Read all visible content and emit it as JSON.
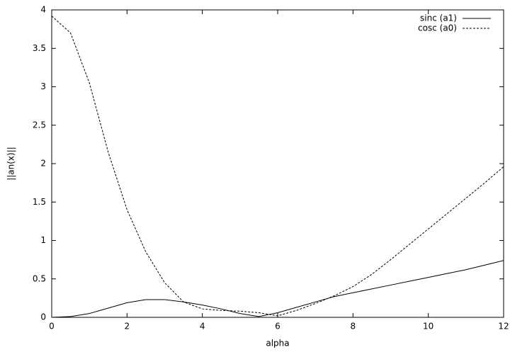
{
  "chart_data": {
    "type": "line",
    "xlabel": "alpha",
    "ylabel": "||an(x)||",
    "x": [
      0,
      0.5,
      1,
      1.5,
      2,
      2.5,
      3,
      3.5,
      4,
      4.5,
      5,
      5.5,
      6,
      6.5,
      7,
      7.5,
      8,
      8.5,
      9,
      9.5,
      10,
      10.5,
      11,
      11.5,
      12
    ],
    "series": [
      {
        "name": "sinc (a1)",
        "color": "#000000",
        "dashed": false,
        "values": [
          0,
          0.01,
          0.05,
          0.12,
          0.19,
          0.23,
          0.23,
          0.2,
          0.16,
          0.11,
          0.05,
          0.01,
          0.06,
          0.13,
          0.2,
          0.27,
          0.32,
          0.37,
          0.42,
          0.47,
          0.52,
          0.57,
          0.62,
          0.68,
          0.74
        ]
      },
      {
        "name": "cosc (a0)",
        "color": "#000000",
        "dashed": true,
        "values": [
          3.92,
          3.7,
          3.05,
          2.15,
          1.4,
          0.85,
          0.45,
          0.2,
          0.11,
          0.09,
          0.08,
          0.06,
          0.02,
          0.09,
          0.18,
          0.28,
          0.4,
          0.56,
          0.75,
          0.95,
          1.15,
          1.35,
          1.55,
          1.75,
          1.96
        ]
      }
    ],
    "xlim": [
      0,
      12
    ],
    "xticks": [
      0,
      2,
      4,
      6,
      8,
      10,
      12
    ],
    "ylim": [
      0,
      4
    ],
    "yticks": [
      0,
      0.5,
      1,
      1.5,
      2,
      2.5,
      3,
      3.5,
      4
    ],
    "legend": "top-right"
  }
}
